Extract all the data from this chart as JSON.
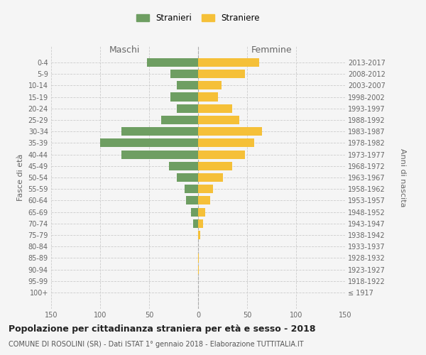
{
  "age_groups": [
    "100+",
    "95-99",
    "90-94",
    "85-89",
    "80-84",
    "75-79",
    "70-74",
    "65-69",
    "60-64",
    "55-59",
    "50-54",
    "45-49",
    "40-44",
    "35-39",
    "30-34",
    "25-29",
    "20-24",
    "15-19",
    "10-14",
    "5-9",
    "0-4"
  ],
  "birth_years": [
    "≤ 1917",
    "1918-1922",
    "1923-1927",
    "1928-1932",
    "1933-1937",
    "1938-1942",
    "1943-1947",
    "1948-1952",
    "1953-1957",
    "1958-1962",
    "1963-1967",
    "1968-1972",
    "1973-1977",
    "1978-1982",
    "1983-1987",
    "1988-1992",
    "1993-1997",
    "1998-2002",
    "2003-2007",
    "2008-2012",
    "2013-2017"
  ],
  "maschi": [
    0,
    0,
    0,
    0,
    0,
    0,
    5,
    7,
    12,
    14,
    22,
    30,
    78,
    100,
    78,
    38,
    22,
    28,
    22,
    28,
    52
  ],
  "femmine": [
    0,
    0,
    1,
    1,
    0,
    2,
    5,
    7,
    12,
    15,
    25,
    35,
    48,
    57,
    65,
    42,
    35,
    20,
    24,
    48,
    62
  ],
  "color_maschi": "#6e9e62",
  "color_femmine": "#f5c038",
  "title": "Popolazione per cittadinanza straniera per età e sesso - 2018",
  "subtitle": "COMUNE DI ROSOLINI (SR) - Dati ISTAT 1° gennaio 2018 - Elaborazione TUTTITALIA.IT",
  "ylabel_left": "Fasce di età",
  "ylabel_right": "Anni di nascita",
  "label_maschi": "Maschi",
  "label_femmine": "Femmine",
  "legend_maschi": "Stranieri",
  "legend_femmine": "Straniere",
  "xlim": 150,
  "background_color": "#f5f5f5",
  "grid_color": "#cccccc",
  "title_fontsize": 9,
  "subtitle_fontsize": 7
}
